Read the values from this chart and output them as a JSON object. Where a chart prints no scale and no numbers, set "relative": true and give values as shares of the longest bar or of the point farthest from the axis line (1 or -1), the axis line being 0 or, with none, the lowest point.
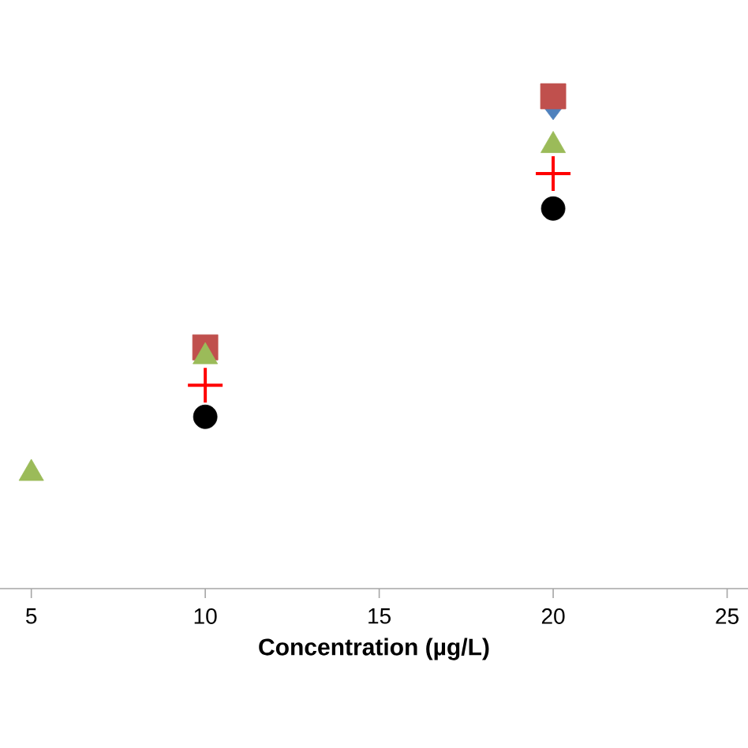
{
  "chart_data": {
    "type": "scatter",
    "xlabel": "Concentration (µg/L)",
    "relative": true,
    "x": [
      5,
      10,
      20
    ],
    "xlim": [
      4.1,
      25.6
    ],
    "xticks": [
      5,
      10,
      15,
      20,
      25
    ],
    "grid": false,
    "series": [
      {
        "color": "#4f81bd",
        "marker": "diamond",
        "values": [
          null,
          null,
          0.981
        ]
      },
      {
        "color": "#c0504d",
        "marker": "square",
        "values": [
          null,
          0.49,
          1
        ]
      },
      {
        "color": "#9bbb59",
        "marker": "triangle",
        "values": [
          0.234,
          0.471,
          0.9
        ]
      },
      {
        "color": "#ff0000",
        "marker": "cross",
        "values": [
          null,
          0.413,
          0.843
        ]
      },
      {
        "color": "#000000",
        "marker": "circle",
        "values": [
          null,
          0.349,
          0.772
        ]
      }
    ]
  }
}
